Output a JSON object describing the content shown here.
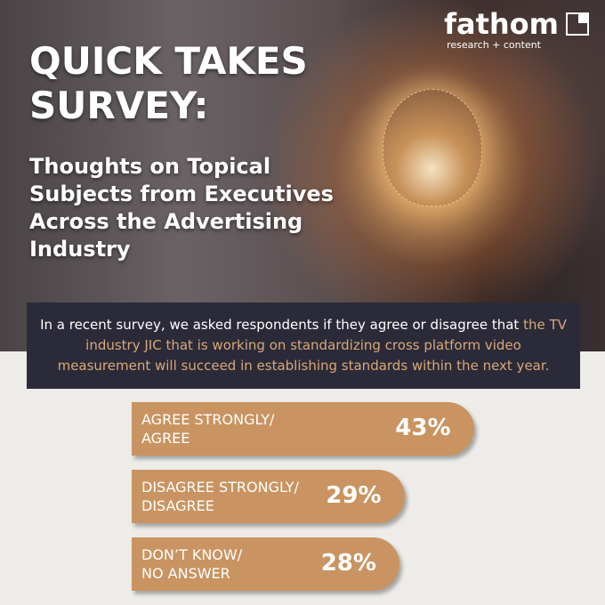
{
  "header": {
    "logo": "fathom",
    "logo_tagline": "research + content",
    "title": "QUICK TAKES SURVEY:",
    "subtitle": "Thoughts on Topical Subjects from Executives Across the Advertising Industry"
  },
  "intro": {
    "text": "In a recent survey, we asked respondents if they agree or disagree that",
    "highlight": "the TV industry JIC that is working on standardizing cross platform video measurement will succeed in establishing standards within the next year."
  },
  "chart_data": {
    "type": "bar",
    "orientation": "horizontal",
    "color": "#c99461",
    "categories": [
      "AGREE STRONGLY/\nAGREE",
      "DISAGREE STRONGLY/\nDISAGREE",
      "DON’T KNOW/\nNO ANSWER"
    ],
    "values": [
      43,
      29,
      28
    ],
    "value_labels": [
      "43%",
      "29%",
      "28%"
    ]
  }
}
